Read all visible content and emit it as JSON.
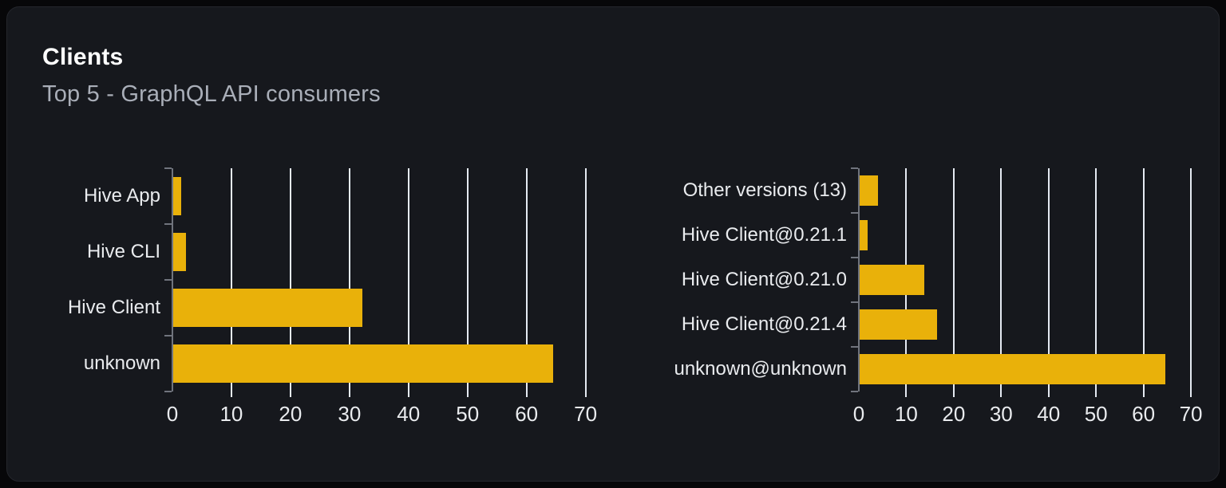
{
  "card": {
    "title": "Clients",
    "subtitle": "Top 5 - GraphQL API consumers"
  },
  "colors": {
    "page_bg": "#070709",
    "card_bg": "#16181d",
    "card_border": "#24262c",
    "bar": "#e9b10a",
    "gridline": "#e5eaf2",
    "axis": "#70747d",
    "label_text": "#e9ebee",
    "title_text": "#ffffff",
    "subtitle_text": "#a9aeb8"
  },
  "chart_data": [
    {
      "type": "bar",
      "orientation": "horizontal",
      "title": "",
      "categories": [
        "Hive App",
        "Hive CLI",
        "Hive Client",
        "unknown"
      ],
      "values": [
        1.4,
        2.1,
        32.1,
        64.4
      ],
      "xlabel": "",
      "ylabel": "",
      "xlim": [
        0,
        71
      ],
      "xticks": [
        0,
        10,
        20,
        30,
        40,
        50,
        60,
        70
      ],
      "grid": true,
      "legend": false,
      "unit": "percent"
    },
    {
      "type": "bar",
      "orientation": "horizontal",
      "title": "",
      "categories": [
        "Other versions (13)",
        "Hive Client@0.21.1",
        "Hive Client@0.21.0",
        "Hive Client@0.21.4",
        "unknown@unknown"
      ],
      "values": [
        3.8,
        1.7,
        13.6,
        16.3,
        64.5
      ],
      "xlabel": "",
      "ylabel": "",
      "xlim": [
        0,
        71
      ],
      "xticks": [
        0,
        10,
        20,
        30,
        40,
        50,
        60,
        70
      ],
      "grid": true,
      "legend": false,
      "unit": "percent"
    }
  ]
}
